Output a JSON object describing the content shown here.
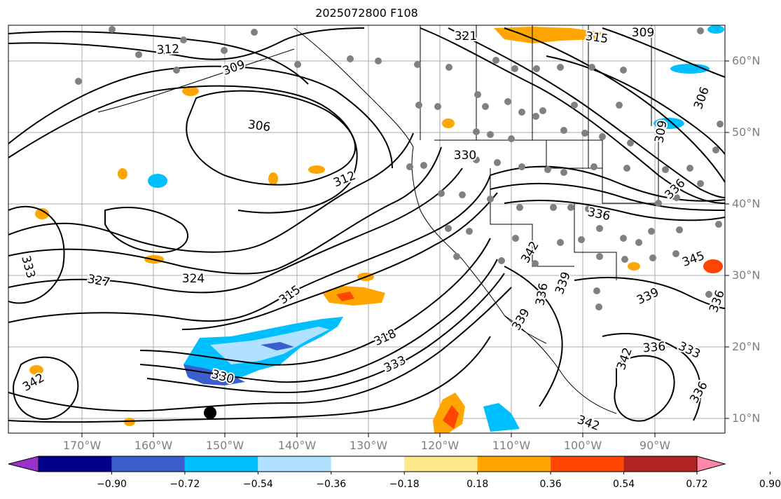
{
  "title": "2025072800 F108",
  "lat_labels": [
    "60°N",
    "50°N",
    "40°N",
    "30°N",
    "20°N",
    "10°N"
  ],
  "lon_labels": [
    "170°W",
    "160°W",
    "150°W",
    "140°W",
    "130°W",
    "120°W",
    "110°W",
    "100°W",
    "90°W"
  ],
  "contour_labels": [
    "321",
    "315",
    "309",
    "312",
    "309",
    "306",
    "312",
    "330",
    "336",
    "306",
    "309",
    "336",
    "342",
    "345",
    "333",
    "327",
    "324",
    "315",
    "318",
    "333",
    "339",
    "336",
    "339",
    "336",
    "336",
    "342",
    "333",
    "339",
    "342",
    "330",
    "342",
    "336"
  ],
  "colorbar": {
    "ticks": [
      "−0.90",
      "−0.72",
      "−0.54",
      "−0.36",
      "−0.18",
      "0.18",
      "0.36",
      "0.54",
      "0.72",
      "0.90"
    ],
    "colors": [
      "#9932cc",
      "#00008b",
      "#3a5fcd",
      "#00bfff",
      "#b0e2ff",
      "#ffffff",
      "#ffe98a",
      "#ffa500",
      "#ff4500",
      "#b22222",
      "#ff88aa"
    ]
  }
}
